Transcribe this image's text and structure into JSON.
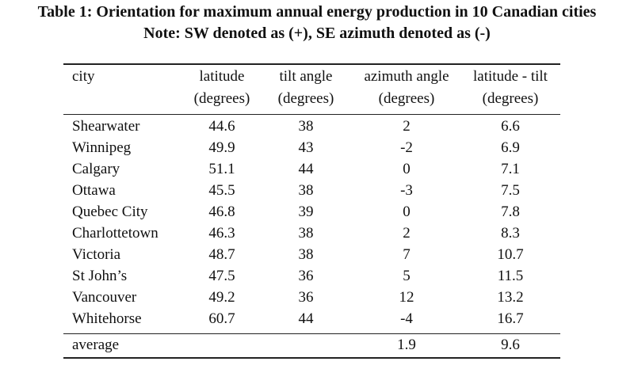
{
  "caption": {
    "line1": "Table 1: Orientation for maximum annual energy production in 10 Canadian cities",
    "line2": "Note: SW denoted as (+), SE azimuth denoted as (-)"
  },
  "table": {
    "headers": [
      [
        "city",
        ""
      ],
      [
        "latitude",
        "(degrees)"
      ],
      [
        "tilt angle",
        "(degrees)"
      ],
      [
        "azimuth angle",
        "(degrees)"
      ],
      [
        "latitude - tilt",
        "(degrees)"
      ]
    ],
    "rows": [
      [
        "Shearwater",
        "44.6",
        "38",
        "2",
        "6.6"
      ],
      [
        "Winnipeg",
        "49.9",
        "43",
        "-2",
        "6.9"
      ],
      [
        "Calgary",
        "51.1",
        "44",
        "0",
        "7.1"
      ],
      [
        "Ottawa",
        "45.5",
        "38",
        "-3",
        "7.5"
      ],
      [
        "Quebec City",
        "46.8",
        "39",
        "0",
        "7.8"
      ],
      [
        "Charlottetown",
        "46.3",
        "38",
        "2",
        "8.3"
      ],
      [
        "Victoria",
        "48.7",
        "38",
        "7",
        "10.7"
      ],
      [
        "St John’s",
        "47.5",
        "36",
        "5",
        "11.5"
      ],
      [
        "Vancouver",
        "49.2",
        "36",
        "12",
        "13.2"
      ],
      [
        "Whitehorse",
        "60.7",
        "44",
        "-4",
        "16.7"
      ]
    ],
    "footer": [
      "average",
      "",
      "",
      "1.9",
      "9.6"
    ]
  }
}
